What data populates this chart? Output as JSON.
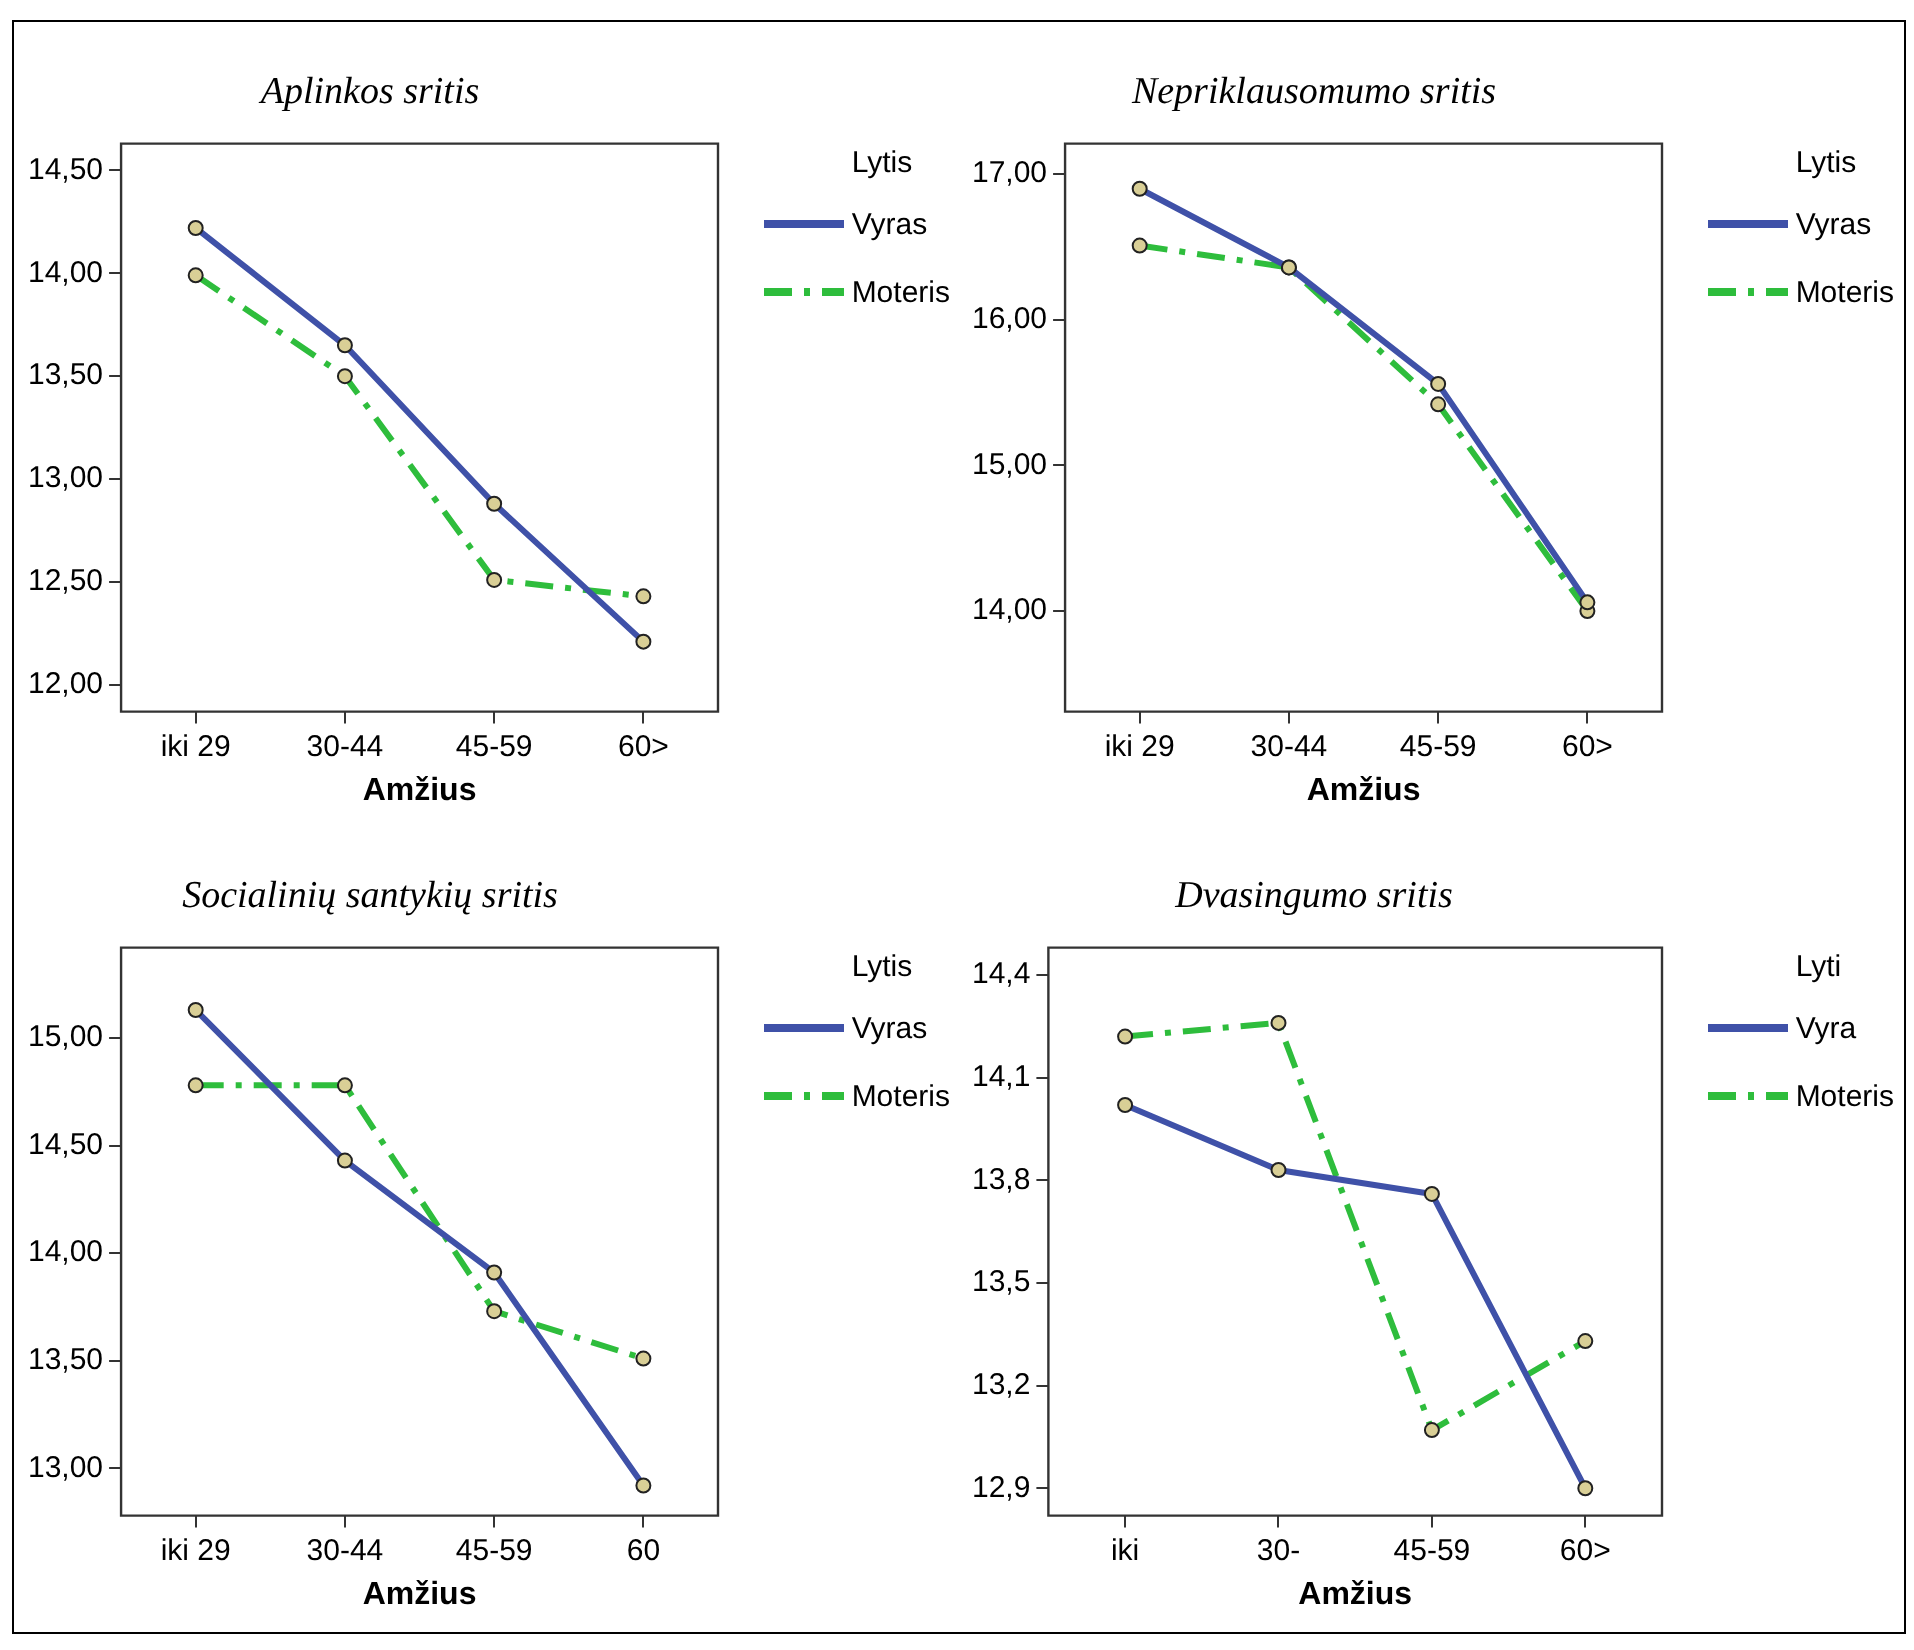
{
  "chart_data": [
    {
      "type": "line",
      "title": "Aplinkos sritis",
      "xlabel": "Amžius",
      "legend_title": "Lytis",
      "legend": "top right",
      "grid": false,
      "marker": "circle",
      "categories": [
        "iki 29",
        "30-44",
        "45-59",
        "60>"
      ],
      "ylim": [
        11.87,
        14.63
      ],
      "yticks": [
        {
          "value": 12,
          "label": "12,00"
        },
        {
          "value": 12.5,
          "label": "12,50"
        },
        {
          "value": 13,
          "label": "13,00"
        },
        {
          "value": 13.5,
          "label": "13,50"
        },
        {
          "value": 14,
          "label": "14,00"
        },
        {
          "value": 14.5,
          "label": "14,50"
        }
      ],
      "series": [
        {
          "name": "Vyras",
          "color": "#3f51a8",
          "line_style": "solid",
          "values": [
            14.22,
            13.65,
            12.88,
            12.21
          ]
        },
        {
          "name": "Moteris",
          "color": "#2ebd3c",
          "line_style": "dashed",
          "values": [
            13.99,
            13.5,
            12.51,
            12.43
          ]
        }
      ]
    },
    {
      "type": "line",
      "title": "Nepriklausomumo sritis",
      "xlabel": "Amžius",
      "legend_title": "Lytis",
      "legend": "top right",
      "grid": false,
      "marker": "circle",
      "categories": [
        "iki 29",
        "30-44",
        "45-59",
        "60>"
      ],
      "ylim": [
        13.31,
        17.21
      ],
      "yticks": [
        {
          "value": 14,
          "label": "14,00"
        },
        {
          "value": 15,
          "label": "15,00"
        },
        {
          "value": 16,
          "label": "16,00"
        },
        {
          "value": 17,
          "label": "17,00"
        }
      ],
      "series": [
        {
          "name": "Vyras",
          "color": "#3f51a8",
          "line_style": "solid",
          "values": [
            16.9,
            16.36,
            15.56,
            14.06
          ]
        },
        {
          "name": "Moteris",
          "color": "#2ebd3c",
          "line_style": "dashed",
          "values": [
            16.51,
            16.36,
            15.42,
            14.0
          ]
        }
      ]
    },
    {
      "type": "line",
      "title": "Socialinių santykių sritis",
      "xlabel": "Amžius",
      "legend_title": "Lytis",
      "legend": "top right",
      "grid": false,
      "marker": "circle",
      "categories": [
        "iki 29",
        "30-44",
        "45-59",
        "60"
      ],
      "ylim": [
        12.78,
        15.42
      ],
      "yticks": [
        {
          "value": 13,
          "label": "13,00"
        },
        {
          "value": 13.5,
          "label": "13,50"
        },
        {
          "value": 14,
          "label": "14,00"
        },
        {
          "value": 14.5,
          "label": "14,50"
        },
        {
          "value": 15,
          "label": "15,00"
        }
      ],
      "series": [
        {
          "name": "Vyras",
          "color": "#3f51a8",
          "line_style": "solid",
          "values": [
            15.13,
            14.43,
            13.91,
            12.92
          ]
        },
        {
          "name": "Moteris",
          "color": "#2ebd3c",
          "line_style": "dashed",
          "values": [
            14.78,
            14.78,
            13.73,
            13.51
          ]
        }
      ]
    },
    {
      "type": "line",
      "title": "Dvasingumo sritis",
      "xlabel": "Amžius",
      "legend_title": "Lyti",
      "legend": "top right",
      "grid": false,
      "marker": "circle",
      "categories": [
        "iki",
        "30-",
        "45-59",
        "60>"
      ],
      "ylim": [
        12.82,
        14.48
      ],
      "yticks": [
        {
          "value": 12.9,
          "label": "12,9"
        },
        {
          "value": 13.2,
          "label": "13,2"
        },
        {
          "value": 13.5,
          "label": "13,5"
        },
        {
          "value": 13.8,
          "label": "13,8"
        },
        {
          "value": 14.1,
          "label": "14,1"
        },
        {
          "value": 14.4,
          "label": "14,4"
        }
      ],
      "series": [
        {
          "name": "Vyra",
          "color": "#3f51a8",
          "line_style": "solid",
          "values": [
            14.02,
            13.83,
            13.76,
            12.9
          ]
        },
        {
          "name": "Moteris",
          "color": "#2ebd3c",
          "line_style": "dashed",
          "values": [
            14.22,
            14.26,
            13.07,
            13.33
          ]
        }
      ]
    }
  ]
}
